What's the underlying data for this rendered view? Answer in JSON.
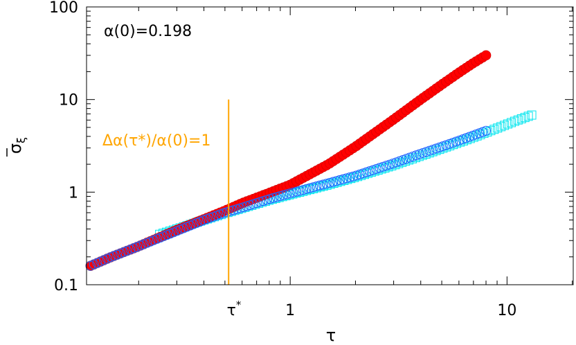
{
  "chart_data": {
    "type": "scatter",
    "xlabel": "τ",
    "ylabel_main": "σ",
    "ylabel_sub": "ξ",
    "xscale": "log",
    "yscale": "log",
    "xlim": [
      0.115,
      20.2
    ],
    "ylim": [
      0.1,
      100
    ],
    "y_ticks": [
      {
        "v": 0.1,
        "label": "0.1"
      },
      {
        "v": 1,
        "label": "1"
      },
      {
        "v": 10,
        "label": "10"
      },
      {
        "v": 100,
        "label": "100"
      }
    ],
    "x_ticks": [
      {
        "v": 1,
        "label": "1"
      },
      {
        "v": 10,
        "label": "10"
      }
    ],
    "tau_star": {
      "x": 0.52,
      "label_main": "τ",
      "label_sup": "*"
    },
    "annotation_alpha": "α(0)=0.198",
    "annotation_threshold": "Δα(τ*)/α(0)=1",
    "colors": {
      "red_series": "#ff0000",
      "blue_series": "#1e64ff",
      "cyan_series": "#00e5ee",
      "vline": "#ffa500",
      "threshold_text": "#ffa500"
    },
    "series": [
      {
        "marker": "filled-circle",
        "color": "#ff0000",
        "x": [
          0.12,
          0.15,
          0.2,
          0.3,
          0.4,
          0.5,
          0.6,
          0.8,
          1.0,
          1.5,
          2.0,
          3.0,
          4.0,
          5.0,
          6.0,
          7.0,
          8.0
        ],
        "y": [
          0.16,
          0.2,
          0.26,
          0.39,
          0.51,
          0.63,
          0.76,
          0.98,
          1.2,
          2.0,
          3.1,
          6.1,
          10.0,
          14.5,
          19.5,
          24.8,
          30.0
        ]
      },
      {
        "marker": "open-circle",
        "color": "#1e64ff",
        "x": [
          0.12,
          0.15,
          0.2,
          0.3,
          0.4,
          0.5,
          0.6,
          0.8,
          1.0,
          1.5,
          2.0,
          3.0,
          4.0,
          5.0,
          6.0,
          7.0,
          8.0
        ],
        "y": [
          0.16,
          0.2,
          0.26,
          0.38,
          0.5,
          0.6,
          0.68,
          0.84,
          0.97,
          1.25,
          1.5,
          2.05,
          2.6,
          3.1,
          3.6,
          4.1,
          4.6
        ]
      },
      {
        "marker": "open-square",
        "color": "#00e5ee",
        "x": [
          0.25,
          0.3,
          0.4,
          0.5,
          0.6,
          0.8,
          1.0,
          1.5,
          2.0,
          3.0,
          5.0,
          7.0,
          9.0,
          11.0,
          13.0
        ],
        "y": [
          0.35,
          0.4,
          0.5,
          0.59,
          0.67,
          0.82,
          0.94,
          1.2,
          1.45,
          1.95,
          2.95,
          3.9,
          4.9,
          5.9,
          6.8
        ]
      }
    ]
  }
}
